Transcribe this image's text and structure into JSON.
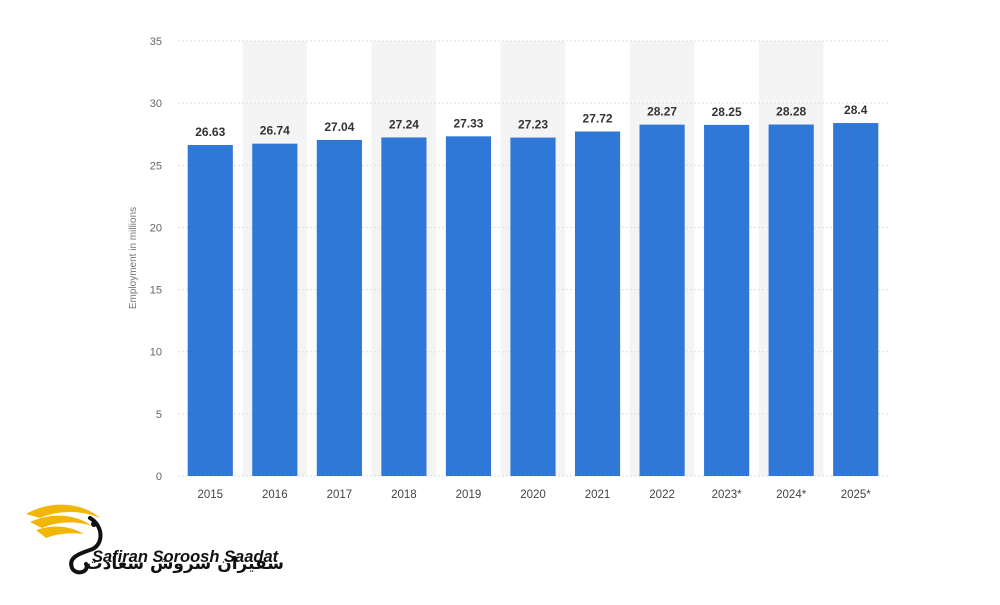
{
  "chart_data": {
    "type": "bar",
    "title": "",
    "xlabel": "",
    "ylabel": "Employment in millions",
    "ylim": [
      0,
      35
    ],
    "yticks": [
      0,
      5,
      10,
      15,
      20,
      25,
      30,
      35
    ],
    "grid": true,
    "categories": [
      "2015",
      "2016",
      "2017",
      "2018",
      "2019",
      "2020",
      "2021",
      "2022",
      "2023*",
      "2024*",
      "2025*"
    ],
    "values": [
      26.63,
      26.74,
      27.04,
      27.24,
      27.33,
      27.23,
      27.72,
      28.27,
      28.25,
      28.28,
      28.4
    ],
    "data_labels": [
      "26.63",
      "26.74",
      "27.04",
      "27.24",
      "27.33",
      "27.23",
      "27.72",
      "28.27",
      "28.25",
      "28.28",
      "28.4"
    ],
    "bar_color": "#2f78d8",
    "column_band_color": "#f4f4f4",
    "grid_color": "#dddddd"
  },
  "logo": {
    "name_en": "Safiran Soroosh Saadat",
    "name_fa": "سفیران سروش سعادت",
    "accent_color": "#f2b705"
  }
}
